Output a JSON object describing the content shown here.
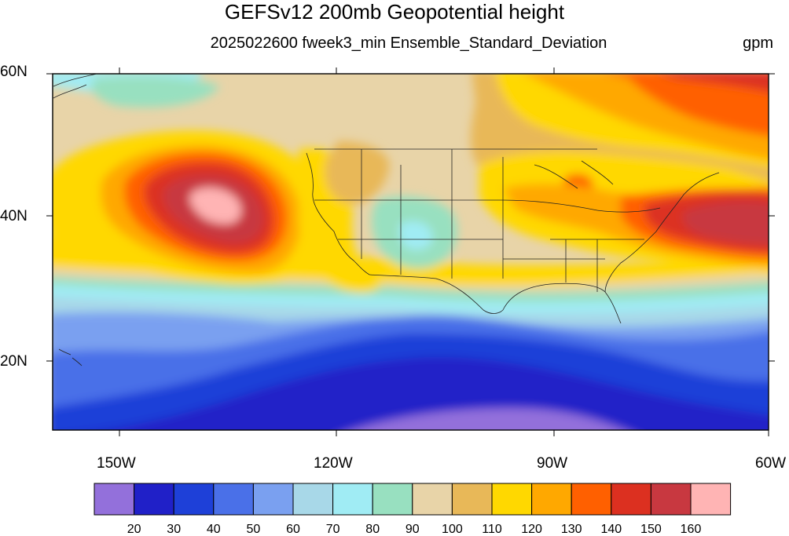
{
  "title": "GEFSv12 200mb Geopotential height",
  "subtitle": "2025022600 fweek3_min Ensemble_Standard_Deviation",
  "units": "gpm",
  "map": {
    "lat_range": [
      10,
      60
    ],
    "lon_range": [
      -160,
      -60
    ],
    "lat_labels": [
      "60N",
      "40N",
      "20N"
    ],
    "lon_labels": [
      "150W",
      "120W",
      "90W",
      "60W"
    ],
    "region": "North Pacific, North America and western Atlantic"
  },
  "colorbar": {
    "labels": [
      "20",
      "30",
      "40",
      "50",
      "60",
      "70",
      "80",
      "90",
      "100",
      "110",
      "120",
      "130",
      "140",
      "150",
      "160"
    ],
    "colors": [
      "#9370db",
      "#2020c8",
      "#1e40d8",
      "#4a70e8",
      "#7aa0f0",
      "#a8d8e8",
      "#a0ecf4",
      "#98e0c0",
      "#e8d4a8",
      "#e8b858",
      "#ffd800",
      "#ffa800",
      "#ff6000",
      "#dc3020",
      "#c83840",
      "#ffb4b4"
    ]
  }
}
